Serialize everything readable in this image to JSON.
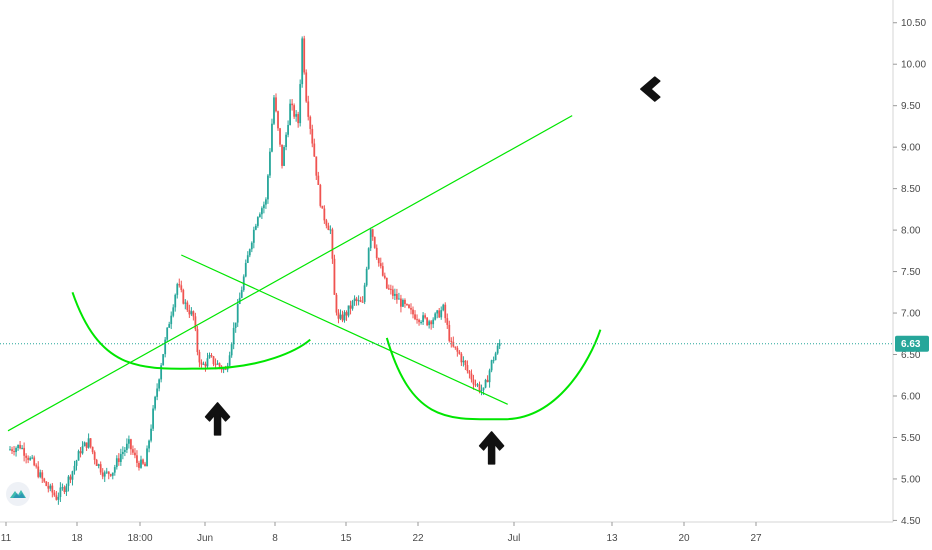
{
  "chart_data": {
    "type": "candlestick",
    "title": "",
    "xlabel": "",
    "ylabel": "",
    "x_tick_labels": [
      "11",
      "18",
      "18:00",
      "Jun",
      "8",
      "15",
      "22",
      "Jul",
      "13",
      "20",
      "27"
    ],
    "y_tick_labels": [
      "4.50",
      "5.00",
      "5.50",
      "6.00",
      "6.50",
      "7.00",
      "7.50",
      "8.00",
      "8.50",
      "9.00",
      "9.50",
      "10.00",
      "10.50"
    ],
    "ylim": [
      4.3,
      10.75
    ],
    "last_price": "6.63",
    "last_price_value": 6.63,
    "grid": false,
    "up_color": "#26a69a",
    "down_color": "#ef5350",
    "price_line_color": "#26a69a",
    "annotation_color": "#00e600",
    "price_path": [
      {
        "x": 0,
        "y": 5.35
      },
      {
        "x": 3,
        "y": 5.4
      },
      {
        "x": 6,
        "y": 5.2
      },
      {
        "x": 9,
        "y": 4.95
      },
      {
        "x": 12,
        "y": 4.78
      },
      {
        "x": 14,
        "y": 4.9
      },
      {
        "x": 16,
        "y": 5.1
      },
      {
        "x": 18,
        "y": 5.35
      },
      {
        "x": 20,
        "y": 5.45
      },
      {
        "x": 22,
        "y": 5.2
      },
      {
        "x": 24,
        "y": 5.05
      },
      {
        "x": 26,
        "y": 5.1
      },
      {
        "x": 28,
        "y": 5.3
      },
      {
        "x": 30,
        "y": 5.42
      },
      {
        "x": 32,
        "y": 5.2
      },
      {
        "x": 34,
        "y": 5.15
      },
      {
        "x": 36,
        "y": 5.8
      },
      {
        "x": 38,
        "y": 6.4
      },
      {
        "x": 40,
        "y": 6.9
      },
      {
        "x": 42,
        "y": 7.35
      },
      {
        "x": 44,
        "y": 7.1
      },
      {
        "x": 46,
        "y": 6.95
      },
      {
        "x": 47,
        "y": 6.55
      },
      {
        "x": 48,
        "y": 6.35
      },
      {
        "x": 50,
        "y": 6.45
      },
      {
        "x": 52,
        "y": 6.38
      },
      {
        "x": 54,
        "y": 6.3
      },
      {
        "x": 56,
        "y": 6.8
      },
      {
        "x": 58,
        "y": 7.3
      },
      {
        "x": 60,
        "y": 7.8
      },
      {
        "x": 62,
        "y": 8.2
      },
      {
        "x": 64,
        "y": 8.35
      },
      {
        "x": 66,
        "y": 9.6
      },
      {
        "x": 68,
        "y": 8.8
      },
      {
        "x": 70,
        "y": 9.5
      },
      {
        "x": 72,
        "y": 9.3
      },
      {
        "x": 73,
        "y": 10.3
      },
      {
        "x": 74,
        "y": 9.6
      },
      {
        "x": 76,
        "y": 8.9
      },
      {
        "x": 77,
        "y": 8.5
      },
      {
        "x": 78,
        "y": 8.2
      },
      {
        "x": 80,
        "y": 8.0
      },
      {
        "x": 81,
        "y": 7.2
      },
      {
        "x": 82,
        "y": 6.9
      },
      {
        "x": 84,
        "y": 7.0
      },
      {
        "x": 86,
        "y": 7.15
      },
      {
        "x": 88,
        "y": 7.1
      },
      {
        "x": 90,
        "y": 8.05
      },
      {
        "x": 92,
        "y": 7.6
      },
      {
        "x": 94,
        "y": 7.3
      },
      {
        "x": 96,
        "y": 7.2
      },
      {
        "x": 98,
        "y": 7.1
      },
      {
        "x": 100,
        "y": 7.0
      },
      {
        "x": 102,
        "y": 6.95
      },
      {
        "x": 104,
        "y": 6.9
      },
      {
        "x": 106,
        "y": 6.95
      },
      {
        "x": 108,
        "y": 7.05
      },
      {
        "x": 110,
        "y": 6.6
      },
      {
        "x": 112,
        "y": 6.5
      },
      {
        "x": 114,
        "y": 6.3
      },
      {
        "x": 116,
        "y": 6.15
      },
      {
        "x": 118,
        "y": 6.05
      },
      {
        "x": 120,
        "y": 6.4
      },
      {
        "x": 122,
        "y": 6.63
      }
    ],
    "annotations": {
      "trendline_ascending": {
        "x0": 0,
        "y0": 5.58,
        "x1": 140,
        "y1": 9.38
      },
      "trendline_descending": {
        "x0": 43,
        "y0": 7.7,
        "x1": 124,
        "y1": 5.9
      },
      "curve_left": {
        "x0": 16,
        "y0": 7.25,
        "x1": 75,
        "y1": 6.68,
        "min_y": 6.33
      },
      "curve_right": {
        "x0": 94,
        "y0": 6.7,
        "x1": 147,
        "y1": 6.8,
        "min_y": 5.72
      },
      "arrows": [
        {
          "direction": "up",
          "x": 52,
          "y": 5.7
        },
        {
          "direction": "up",
          "x": 120,
          "y": 5.35
        },
        {
          "direction": "left",
          "x": 160,
          "y": 9.7
        }
      ]
    }
  }
}
